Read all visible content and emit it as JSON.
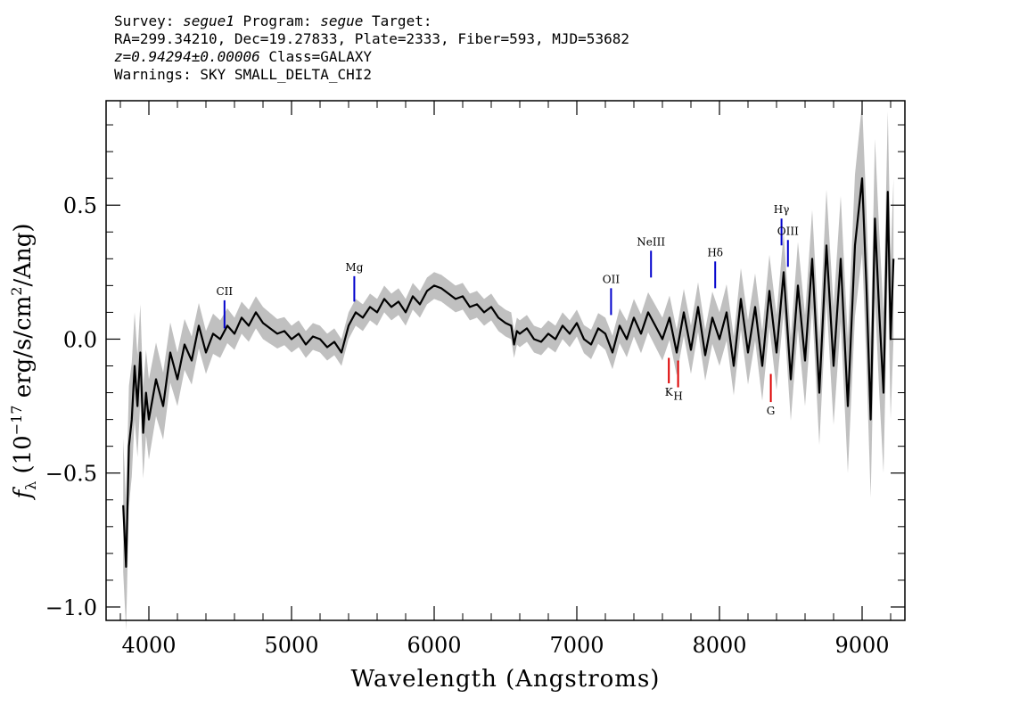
{
  "header": {
    "survey_label": "Survey:",
    "survey": "segue1",
    "program_label": "Program:",
    "program": "segue",
    "target_label": "Target:",
    "line2": "RA=299.34210, Dec=19.27833, Plate=2333, Fiber=593, MJD=53682",
    "redshift": "z=0.94294±0.00006",
    "class": "Class=GALAXY",
    "warnings": "Warnings: SKY SMALL_DELTA_CHI2"
  },
  "colors": {
    "flux": "#000000",
    "error_band": "#c0c0c0",
    "emission": "#0000cc",
    "absorption": "#dd0000",
    "axes": "#000000"
  },
  "chart_data": {
    "type": "line",
    "xlabel": "Wavelength (Angstroms)",
    "ylabel": "f_λ (10^-17 erg/s/cm^2/Ang)",
    "xlim": [
      3700,
      9300
    ],
    "ylim": [
      -1.05,
      0.89
    ],
    "xticks": [
      4000,
      5000,
      6000,
      7000,
      8000,
      9000
    ],
    "xtick_labels": [
      "4000",
      "5000",
      "6000",
      "7000",
      "8000",
      "9000"
    ],
    "yticks": [
      -1.0,
      -0.5,
      0.0,
      0.5
    ],
    "ytick_labels": [
      "−1.0",
      "−0.5",
      "0.0",
      "0.5"
    ],
    "grid": false,
    "series": [
      {
        "kind": "flux",
        "x": [
          3820,
          3840,
          3860,
          3880,
          3900,
          3920,
          3940,
          3960,
          3980,
          4000,
          4050,
          4100,
          4150,
          4200,
          4250,
          4300,
          4350,
          4400,
          4450,
          4500,
          4550,
          4600,
          4650,
          4700,
          4750,
          4800,
          4850,
          4900,
          4950,
          5000,
          5050,
          5100,
          5150,
          5200,
          5250,
          5300,
          5350,
          5400,
          5450,
          5500,
          5550,
          5600,
          5650,
          5700,
          5750,
          5800,
          5850,
          5900,
          5950,
          6000,
          6050,
          6100,
          6150,
          6200,
          6250,
          6300,
          6350,
          6400,
          6450,
          6500,
          6540,
          6560,
          6580,
          6600,
          6650,
          6700,
          6750,
          6800,
          6850,
          6900,
          6950,
          7000,
          7050,
          7100,
          7150,
          7200,
          7250,
          7300,
          7350,
          7400,
          7450,
          7500,
          7550,
          7600,
          7650,
          7700,
          7750,
          7800,
          7850,
          7900,
          7950,
          8000,
          8050,
          8100,
          8150,
          8200,
          8250,
          8300,
          8350,
          8400,
          8450,
          8500,
          8550,
          8600,
          8650,
          8700,
          8750,
          8800,
          8850,
          8900,
          8950,
          9000,
          9030,
          9060,
          9090,
          9120,
          9150,
          9180,
          9200,
          9220
        ],
        "y": [
          -0.62,
          -0.85,
          -0.4,
          -0.3,
          -0.1,
          -0.25,
          -0.05,
          -0.35,
          -0.2,
          -0.3,
          -0.15,
          -0.25,
          -0.05,
          -0.15,
          -0.02,
          -0.08,
          0.05,
          -0.05,
          0.02,
          0.0,
          0.05,
          0.02,
          0.08,
          0.05,
          0.1,
          0.06,
          0.04,
          0.02,
          0.03,
          0.0,
          0.02,
          -0.02,
          0.01,
          0.0,
          -0.03,
          -0.01,
          -0.05,
          0.05,
          0.1,
          0.08,
          0.12,
          0.1,
          0.15,
          0.12,
          0.14,
          0.1,
          0.16,
          0.13,
          0.18,
          0.2,
          0.19,
          0.17,
          0.15,
          0.16,
          0.12,
          0.13,
          0.1,
          0.12,
          0.08,
          0.06,
          0.05,
          -0.02,
          0.03,
          0.02,
          0.04,
          0.0,
          -0.01,
          0.02,
          0.0,
          0.05,
          0.02,
          0.06,
          0.0,
          -0.02,
          0.04,
          0.02,
          -0.05,
          0.05,
          0.0,
          0.08,
          0.02,
          0.1,
          0.05,
          0.0,
          0.08,
          -0.05,
          0.1,
          -0.04,
          0.12,
          -0.06,
          0.08,
          0.0,
          0.1,
          -0.1,
          0.15,
          -0.05,
          0.12,
          -0.1,
          0.18,
          -0.05,
          0.25,
          -0.15,
          0.2,
          -0.08,
          0.3,
          -0.2,
          0.35,
          -0.1,
          0.3,
          -0.25,
          0.35,
          0.6,
          0.2,
          -0.3,
          0.45,
          0.1,
          -0.2,
          0.55,
          0.0,
          0.3
        ]
      },
      {
        "kind": "error",
        "x": [
          3820,
          3900,
          4000,
          4200,
          4400,
          4600,
          4800,
          5000,
          5200,
          5400,
          5600,
          5800,
          6000,
          6200,
          6400,
          6600,
          6800,
          7000,
          7200,
          7400,
          7600,
          7800,
          8000,
          8200,
          8400,
          8600,
          8800,
          9000,
          9100,
          9220
        ],
        "sigma": [
          0.25,
          0.2,
          0.15,
          0.1,
          0.08,
          0.06,
          0.06,
          0.05,
          0.05,
          0.05,
          0.05,
          0.05,
          0.05,
          0.05,
          0.05,
          0.05,
          0.05,
          0.05,
          0.06,
          0.07,
          0.08,
          0.09,
          0.1,
          0.12,
          0.14,
          0.17,
          0.22,
          0.28,
          0.3,
          0.3
        ]
      }
    ],
    "line_markers": [
      {
        "label": "CII",
        "x": 4530,
        "kind": "emission",
        "y_top": 0.145,
        "y_bottom": 0.04
      },
      {
        "label": "Mg",
        "x": 5440,
        "kind": "emission",
        "y_top": 0.235,
        "y_bottom": 0.14
      },
      {
        "label": "OII",
        "x": 7240,
        "kind": "emission",
        "y_top": 0.19,
        "y_bottom": 0.09
      },
      {
        "label": "NeIII",
        "x": 7520,
        "kind": "emission",
        "y_top": 0.33,
        "y_bottom": 0.23
      },
      {
        "label": "Hδ",
        "x": 7970,
        "kind": "emission",
        "y_top": 0.29,
        "y_bottom": 0.19
      },
      {
        "label": "Hγ",
        "x": 8435,
        "kind": "emission",
        "y_top": 0.45,
        "y_bottom": 0.35
      },
      {
        "label": "OIII",
        "x": 8480,
        "kind": "emission",
        "y_top": 0.37,
        "y_bottom": 0.27
      },
      {
        "label": "K",
        "x": 7645,
        "kind": "absorption",
        "y_top": -0.07,
        "y_bottom": -0.165
      },
      {
        "label": "H",
        "x": 7710,
        "kind": "absorption",
        "y_top": -0.08,
        "y_bottom": -0.18
      },
      {
        "label": "G",
        "x": 8360,
        "kind": "absorption",
        "y_top": -0.13,
        "y_bottom": -0.235
      }
    ]
  }
}
